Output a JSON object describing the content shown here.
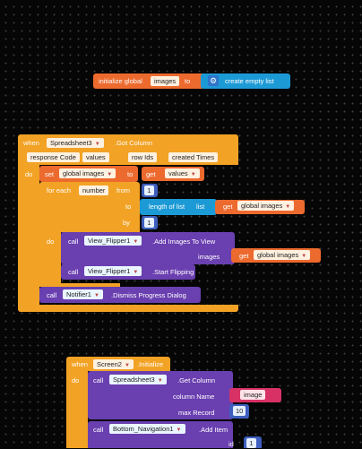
{
  "init_block": {
    "label": "initialize global",
    "var_name": "images",
    "to": "to",
    "create_label": "create empty list",
    "settings_icon": "gear-icon"
  },
  "event_got_column": {
    "when": "when",
    "component": "Spreadsheet3",
    "event": ".Got Column",
    "params": [
      "response Code",
      "values",
      "row Ids",
      "created Times"
    ],
    "do": "do",
    "set_block": {
      "set": "set",
      "var": "global images",
      "to": "to",
      "get": "get",
      "get_var": "values"
    },
    "for_each": {
      "label": "for each",
      "var": "number",
      "from": "from",
      "from_value": "1",
      "to": "to",
      "length_label": "length of list",
      "list_label": "list",
      "get": "get",
      "get_var": "global images",
      "by": "by",
      "by_value": "1",
      "do": "do",
      "call_add": {
        "call": "call",
        "component": "View_Flipper1",
        "method": ".Add Images To View",
        "param": "images",
        "get": "get",
        "get_var": "global images"
      },
      "call_start": {
        "call": "call",
        "component": "View_Flipper1",
        "method": ".Start Flipping"
      }
    },
    "call_dismiss": {
      "call": "call",
      "component": "Notifier1",
      "method": ".Dismiss Progress Dialog"
    }
  },
  "event_initialize": {
    "when": "when",
    "component": "Screen2",
    "event": ".Initialize",
    "do": "do",
    "call_get_column": {
      "call": "call",
      "component": "Spreadsheet3",
      "method": ".Get Column",
      "column_name_label": "column Name",
      "column_name_value": "image",
      "max_record_label": "max Record",
      "max_record_value": "10"
    },
    "call_add_item": {
      "call": "call",
      "component": "Bottom_Navigation1",
      "method": ".Add Item",
      "id_label": "id",
      "id_value": "1"
    }
  },
  "colors": {
    "event_block": "#f2a224",
    "variable_block": "#ed6a2e",
    "control_block": "#f2a224",
    "list_block": "#4aa3df",
    "component_call": "#6a3fb0",
    "notifier_call": "#6a3fb0",
    "text_block": "#d83166",
    "math_block": "#3e5fbf",
    "workspace_bg": "#060606"
  }
}
